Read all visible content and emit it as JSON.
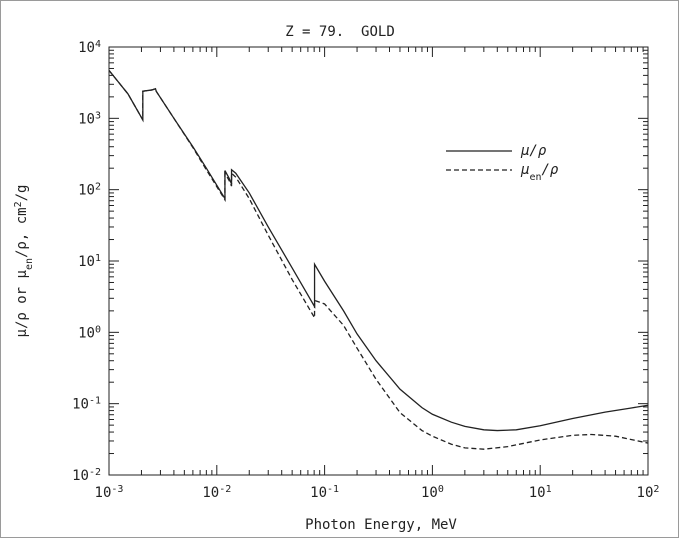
{
  "chart_data": {
    "type": "line",
    "title": "Z = 79.  GOLD",
    "xlabel": "Photon Energy, MeV",
    "ylabel": {
      "parts": [
        "μ/ρ or μ",
        "en",
        "/ρ, cm",
        "2",
        "/g"
      ]
    },
    "x_scale": "log",
    "y_scale": "log",
    "xlim": [
      0.001,
      100
    ],
    "ylim": [
      0.01,
      10000
    ],
    "x_ticks": [
      {
        "value": 0.001,
        "base": "10",
        "exp": "-3"
      },
      {
        "value": 0.01,
        "base": "10",
        "exp": "-2"
      },
      {
        "value": 0.1,
        "base": "10",
        "exp": "-1"
      },
      {
        "value": 1,
        "base": "10",
        "exp": "0"
      },
      {
        "value": 10,
        "base": "10",
        "exp": "1"
      },
      {
        "value": 100,
        "base": "10",
        "exp": "2"
      }
    ],
    "y_ticks": [
      {
        "value": 0.01,
        "base": "10",
        "exp": "-2"
      },
      {
        "value": 0.1,
        "base": "10",
        "exp": "-1"
      },
      {
        "value": 1,
        "base": "10",
        "exp": "0"
      },
      {
        "value": 10,
        "base": "10",
        "exp": "1"
      },
      {
        "value": 100,
        "base": "10",
        "exp": "2"
      },
      {
        "value": 1000,
        "base": "10",
        "exp": "3"
      },
      {
        "value": 10000,
        "base": "10",
        "exp": "4"
      }
    ],
    "grid": false,
    "legend_position": "upper-right",
    "series": [
      {
        "name": "μ/ρ",
        "legend_parts": [
          "μ/ρ"
        ],
        "style": "solid",
        "color": "#222222",
        "points": [
          [
            0.001,
            4700
          ],
          [
            0.0015,
            2200
          ],
          [
            0.00206,
            950
          ],
          [
            0.00206,
            2400
          ],
          [
            0.0025,
            2500
          ],
          [
            0.0027,
            2600
          ],
          [
            0.00274,
            2400
          ],
          [
            0.004,
            1000
          ],
          [
            0.006,
            400
          ],
          [
            0.008,
            200
          ],
          [
            0.0119,
            75
          ],
          [
            0.0119,
            185
          ],
          [
            0.013,
            145
          ],
          [
            0.0137,
            120
          ],
          [
            0.0137,
            190
          ],
          [
            0.015,
            170
          ],
          [
            0.02,
            90
          ],
          [
            0.03,
            30
          ],
          [
            0.05,
            8
          ],
          [
            0.0807,
            2.3
          ],
          [
            0.0807,
            9.0
          ],
          [
            0.1,
            5.2
          ],
          [
            0.15,
            2.0
          ],
          [
            0.2,
            0.95
          ],
          [
            0.3,
            0.4
          ],
          [
            0.5,
            0.16
          ],
          [
            0.8,
            0.088
          ],
          [
            1.0,
            0.071
          ],
          [
            1.5,
            0.055
          ],
          [
            2,
            0.048
          ],
          [
            3,
            0.043
          ],
          [
            4,
            0.042
          ],
          [
            6,
            0.043
          ],
          [
            10,
            0.049
          ],
          [
            20,
            0.062
          ],
          [
            40,
            0.076
          ],
          [
            70,
            0.087
          ],
          [
            100,
            0.095
          ]
        ]
      },
      {
        "name": "μen/ρ",
        "legend_parts": [
          "μ",
          "en",
          "/ρ"
        ],
        "style": "dashed",
        "color": "#222222",
        "points": [
          [
            0.001,
            4700
          ],
          [
            0.0015,
            2200
          ],
          [
            0.00206,
            950
          ],
          [
            0.00206,
            2400
          ],
          [
            0.0025,
            2500
          ],
          [
            0.0027,
            2600
          ],
          [
            0.00274,
            2400
          ],
          [
            0.004,
            1000
          ],
          [
            0.006,
            390
          ],
          [
            0.008,
            190
          ],
          [
            0.0119,
            72
          ],
          [
            0.0119,
            170
          ],
          [
            0.013,
            135
          ],
          [
            0.0137,
            112
          ],
          [
            0.0137,
            170
          ],
          [
            0.015,
            150
          ],
          [
            0.02,
            75
          ],
          [
            0.03,
            23
          ],
          [
            0.05,
            5.5
          ],
          [
            0.0807,
            1.6
          ],
          [
            0.0807,
            2.8
          ],
          [
            0.1,
            2.5
          ],
          [
            0.15,
            1.25
          ],
          [
            0.2,
            0.6
          ],
          [
            0.3,
            0.22
          ],
          [
            0.5,
            0.075
          ],
          [
            0.8,
            0.042
          ],
          [
            1.0,
            0.035
          ],
          [
            1.5,
            0.027
          ],
          [
            2,
            0.024
          ],
          [
            3,
            0.023
          ],
          [
            5,
            0.025
          ],
          [
            10,
            0.031
          ],
          [
            20,
            0.036
          ],
          [
            30,
            0.037
          ],
          [
            50,
            0.035
          ],
          [
            100,
            0.028
          ]
        ]
      }
    ]
  }
}
